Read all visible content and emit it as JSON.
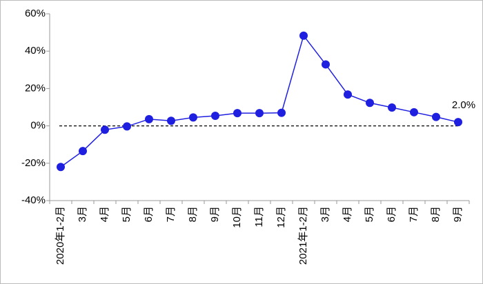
{
  "chart_data": {
    "type": "line",
    "categories": [
      "2020年1-2月",
      "3月",
      "4月",
      "5月",
      "6月",
      "7月",
      "8月",
      "9月",
      "10月",
      "11月",
      "12月",
      "2021年1-2月",
      "3月",
      "4月",
      "5月",
      "6月",
      "7月",
      "8月",
      "9月"
    ],
    "series": [
      {
        "color": "#1f1fe0",
        "values": [
          -22.0,
          -13.5,
          -2.1,
          -0.3,
          3.6,
          2.7,
          4.5,
          5.4,
          6.8,
          6.8,
          7.0,
          48.3,
          32.9,
          16.8,
          12.3,
          9.8,
          7.3,
          4.8,
          2.0
        ],
        "value_labels": [
          null,
          null,
          null,
          null,
          null,
          null,
          null,
          null,
          null,
          null,
          null,
          null,
          null,
          null,
          null,
          null,
          null,
          null,
          "2.0%"
        ]
      }
    ],
    "ylim": [
      -40,
      60
    ],
    "yticks": [
      {
        "value": -40,
        "label": "-40%"
      },
      {
        "value": -20,
        "label": "-20%"
      },
      {
        "value": 0,
        "label": "0%"
      },
      {
        "value": 20,
        "label": "20%"
      },
      {
        "value": 40,
        "label": "40%"
      },
      {
        "value": 60,
        "label": "60%"
      }
    ],
    "reference_line": 0
  }
}
